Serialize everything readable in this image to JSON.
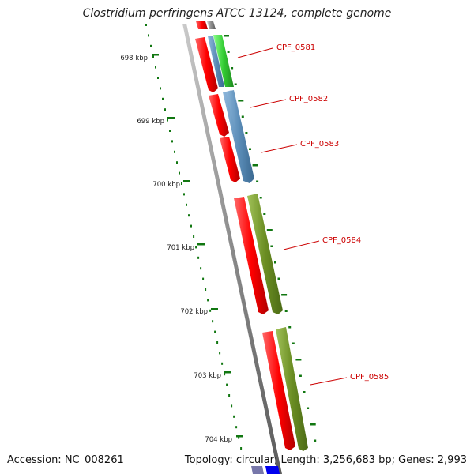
{
  "title": "Clostridium perfringens ATCC 13124, complete genome",
  "footer": {
    "accession": "Accession: NC_008261",
    "topology": "Topology: circular; Length: 3,256,683 bp; Genes: 2,993"
  },
  "ruler_labels": [
    "698 kbp",
    "699 kbp",
    "700 kbp",
    "701 kbp",
    "702 kbp",
    "703 kbp",
    "704 kbp"
  ],
  "genes": [
    {
      "name": "CPF_0581",
      "color": "#33cc33"
    },
    {
      "name": "CPF_0582",
      "color": "#5b8db8"
    },
    {
      "name": "CPF_0583",
      "color": "#5b8db8"
    },
    {
      "name": "CPF_0584",
      "color": "#6b8e23"
    },
    {
      "name": "CPF_0585",
      "color": "#6b8e23"
    }
  ],
  "colors": {
    "backbone": "#888888",
    "cds": "#ff0000",
    "label": "#cc0000",
    "tick": "#117711"
  }
}
